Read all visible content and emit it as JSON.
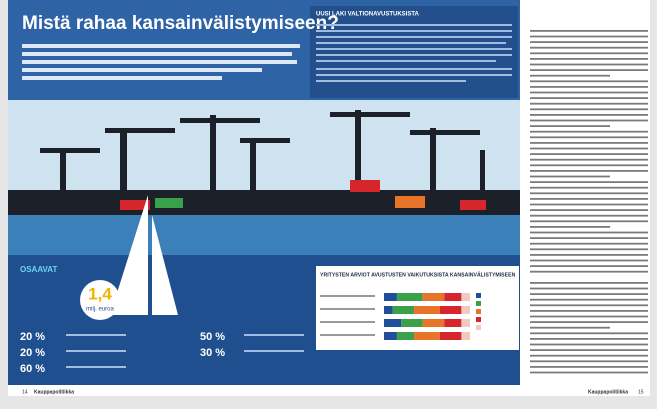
{
  "header": {
    "title": "Mistä rahaa kansainvälistymiseen?"
  },
  "sidebar_box": {
    "heading": "UUSI LAKI VALTIONAVUSTUKSISTA"
  },
  "stats": {
    "heading": "OSAAVAT",
    "big_number": "1,4",
    "big_unit": "milj. euroa",
    "left_percents": [
      "20 %",
      "20 %",
      "60 %"
    ],
    "middle_percents": [
      "50 %",
      "30 %"
    ]
  },
  "chart_box": {
    "title": "YRITYSTEN ARVIOT AVUSTUSTEN VAIKUTUKSISTA KANSAINVÄLISTYMISEEN",
    "chart_data": {
      "type": "stacked-bar",
      "colors": [
        "#1f4f9a",
        "#3aa04a",
        "#e8742a",
        "#d7262b",
        "#f2c9c0"
      ],
      "rows": [
        [
          15,
          30,
          25,
          20,
          10
        ],
        [
          10,
          25,
          30,
          25,
          10
        ],
        [
          20,
          25,
          25,
          20,
          10
        ],
        [
          15,
          20,
          30,
          25,
          10
        ]
      ],
      "xlim": [
        0,
        100
      ]
    }
  },
  "footer": {
    "left_page": "14",
    "left_magazine": "Kauppapolitiikka",
    "right_magazine": "Kauppapolitiikka",
    "right_page": "15"
  }
}
